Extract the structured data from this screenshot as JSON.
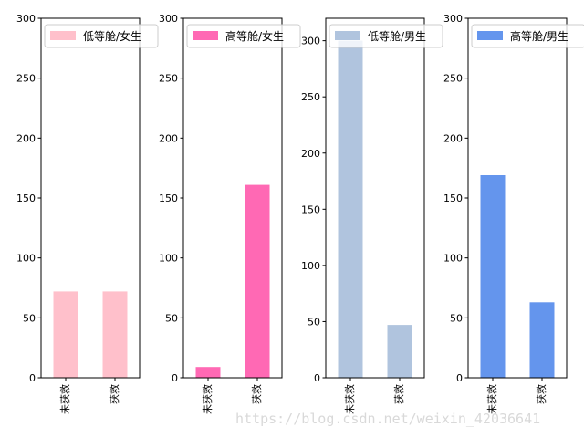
{
  "chart_data": [
    {
      "type": "bar",
      "categories": [
        "未获救",
        "获救"
      ],
      "series": [
        {
          "name": "低等舱/女生",
          "values": [
            72,
            72
          ],
          "color": "#ffc0cb"
        }
      ],
      "ylim": [
        0,
        300
      ],
      "yticks": [
        0,
        50,
        100,
        150,
        200,
        250,
        300
      ],
      "legend_position": "upper-left"
    },
    {
      "type": "bar",
      "categories": [
        "未获救",
        "获救"
      ],
      "series": [
        {
          "name": "高等舱/女生",
          "values": [
            9,
            161
          ],
          "color": "#ff69b4"
        }
      ],
      "ylim": [
        0,
        300
      ],
      "yticks": [
        0,
        50,
        100,
        150,
        200,
        250,
        300
      ],
      "legend_position": "upper-left"
    },
    {
      "type": "bar",
      "categories": [
        "未获救",
        "获救"
      ],
      "series": [
        {
          "name": "低等舱/男生",
          "values": [
            300,
            47
          ],
          "color": "#b0c4de"
        }
      ],
      "ylim": [
        0,
        320
      ],
      "yticks": [
        0,
        50,
        100,
        150,
        200,
        250,
        300
      ],
      "legend_position": "upper-left"
    },
    {
      "type": "bar",
      "categories": [
        "未获救",
        "获救"
      ],
      "series": [
        {
          "name": "高等舱/男生",
          "values": [
            169,
            63
          ],
          "color": "#6495ed"
        }
      ],
      "ylim": [
        0,
        300
      ],
      "yticks": [
        0,
        50,
        100,
        150,
        200,
        250,
        300
      ],
      "legend_position": "upper-left"
    }
  ],
  "watermark": "https://blog.csdn.net/weixin_42036641"
}
